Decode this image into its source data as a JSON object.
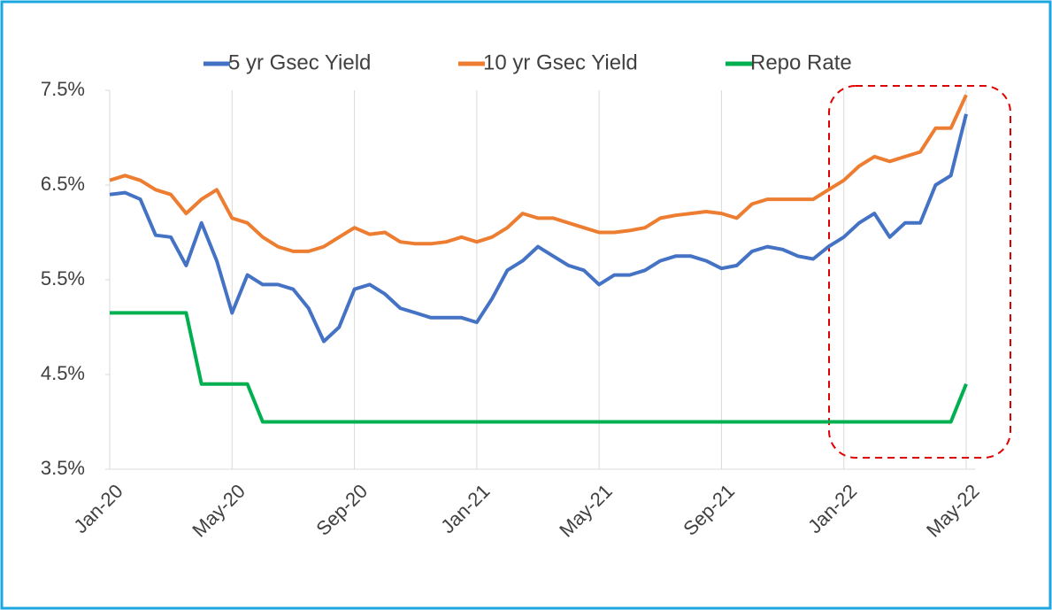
{
  "chart_data": {
    "type": "line",
    "categories": [
      "Jan-20",
      null,
      null,
      null,
      null,
      null,
      null,
      null,
      "May-20",
      null,
      null,
      null,
      null,
      null,
      null,
      null,
      "Sep-20",
      null,
      null,
      null,
      null,
      null,
      null,
      null,
      "Jan-21",
      null,
      null,
      null,
      null,
      null,
      null,
      null,
      "May-21",
      null,
      null,
      null,
      null,
      null,
      null,
      null,
      "Sep-21",
      null,
      null,
      null,
      null,
      null,
      null,
      null,
      "Jan-22",
      null,
      null,
      null,
      null,
      null,
      null,
      null,
      "May-22"
    ],
    "series": [
      {
        "name": "5 yr Gsec Yield",
        "color": "#4472c4",
        "values": [
          6.4,
          6.42,
          6.35,
          5.97,
          5.95,
          5.65,
          6.1,
          5.7,
          5.15,
          5.55,
          5.45,
          5.45,
          5.4,
          5.2,
          4.85,
          5.0,
          5.4,
          5.45,
          5.35,
          5.2,
          5.15,
          5.1,
          5.1,
          5.1,
          5.05,
          5.3,
          5.6,
          5.7,
          5.85,
          5.75,
          5.65,
          5.6,
          5.45,
          5.55,
          5.55,
          5.6,
          5.7,
          5.75,
          5.75,
          5.7,
          5.62,
          5.65,
          5.8,
          5.85,
          5.82,
          5.75,
          5.72,
          5.85,
          5.95,
          6.1,
          6.2,
          5.95,
          6.1,
          6.1,
          6.5,
          6.6,
          7.25
        ]
      },
      {
        "name": "10 yr Gsec Yield",
        "color": "#ed7d31",
        "values": [
          6.55,
          6.6,
          6.55,
          6.45,
          6.4,
          6.2,
          6.35,
          6.45,
          6.15,
          6.1,
          5.95,
          5.85,
          5.8,
          5.8,
          5.85,
          5.95,
          6.05,
          5.98,
          6.0,
          5.9,
          5.88,
          5.88,
          5.9,
          5.95,
          5.9,
          5.95,
          6.05,
          6.2,
          6.15,
          6.15,
          6.1,
          6.05,
          6.0,
          6.0,
          6.02,
          6.05,
          6.15,
          6.18,
          6.2,
          6.22,
          6.2,
          6.15,
          6.3,
          6.35,
          6.35,
          6.35,
          6.35,
          6.45,
          6.55,
          6.7,
          6.8,
          6.75,
          6.8,
          6.85,
          7.1,
          7.1,
          7.45
        ]
      },
      {
        "name": "Repo Rate",
        "color": "#00b050",
        "values": [
          5.15,
          5.15,
          5.15,
          5.15,
          5.15,
          5.15,
          4.4,
          4.4,
          4.4,
          4.4,
          4.0,
          4.0,
          4.0,
          4.0,
          4.0,
          4.0,
          4.0,
          4.0,
          4.0,
          4.0,
          4.0,
          4.0,
          4.0,
          4.0,
          4.0,
          4.0,
          4.0,
          4.0,
          4.0,
          4.0,
          4.0,
          4.0,
          4.0,
          4.0,
          4.0,
          4.0,
          4.0,
          4.0,
          4.0,
          4.0,
          4.0,
          4.0,
          4.0,
          4.0,
          4.0,
          4.0,
          4.0,
          4.0,
          4.0,
          4.0,
          4.0,
          4.0,
          4.0,
          4.0,
          4.0,
          4.0,
          4.4
        ]
      }
    ],
    "ylim": [
      3.5,
      7.5
    ],
    "yticks": [
      {
        "value": 3.5,
        "label": "3.5%"
      },
      {
        "value": 4.5,
        "label": "4.5%"
      },
      {
        "value": 5.5,
        "label": "5.5%"
      },
      {
        "value": 6.5,
        "label": "6.5%"
      },
      {
        "value": 7.5,
        "label": "7.5%"
      }
    ],
    "grid": true,
    "legend": "top"
  }
}
